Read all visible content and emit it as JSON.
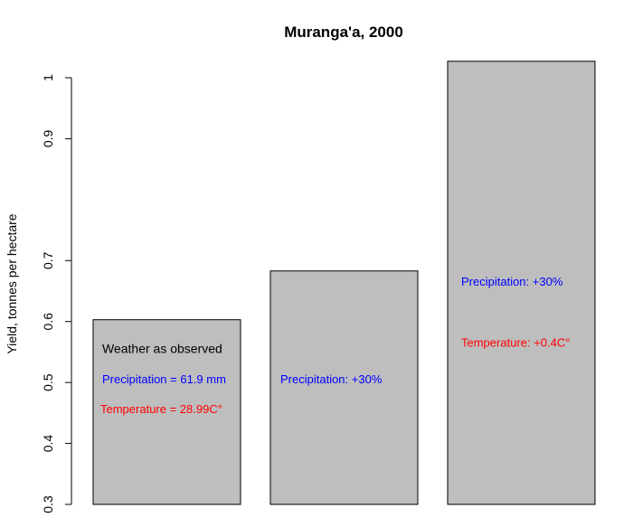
{
  "chart_data": {
    "type": "bar",
    "title": "Muranga'a, 2000",
    "xlabel": "",
    "ylabel": "Yield, tonnes per hectare",
    "ylim": [
      0.3,
      1.0
    ],
    "yticks": [
      "0.3",
      "0.4",
      "0.5",
      "0.6",
      "0.7",
      "0.9",
      "1"
    ],
    "ytick_values": [
      0.3,
      0.4,
      0.5,
      0.6,
      0.7,
      0.9,
      1.0
    ],
    "values": [
      0.603,
      0.683,
      1.027
    ],
    "bar_color": "#bebebe",
    "grid": false,
    "annotations": [
      [
        {
          "text": "Weather as observed",
          "color": "#000000",
          "y": 0.556
        },
        {
          "text": "Precipitation = 61.9 mm",
          "color": "#0000ff",
          "y": 0.506
        },
        {
          "text": "Temperature = 28.99C°",
          "color": "#ff0000",
          "y": 0.457
        }
      ],
      [
        {
          "text": "Precipitation: +30%",
          "color": "#0000ff",
          "y": 0.506
        }
      ],
      [
        {
          "text": "Precipitation: +30%",
          "color": "#0000ff",
          "y": 0.666
        },
        {
          "text": "Temperature: +0.4C°",
          "color": "#ff0000",
          "y": 0.566
        }
      ]
    ]
  }
}
